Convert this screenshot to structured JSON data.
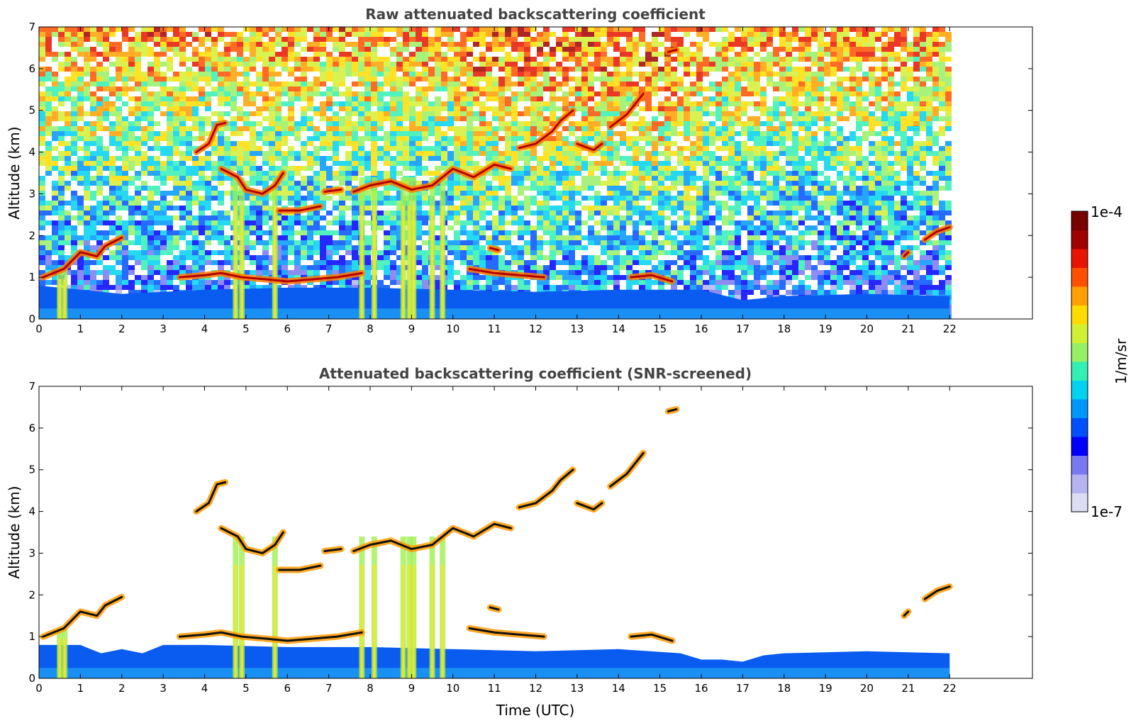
{
  "chart_data": [
    {
      "type": "heatmap",
      "title": "Raw attenuated backscattering coefficient",
      "xlabel": "",
      "ylabel": "Altitude (km)",
      "xlim": [
        0,
        24
      ],
      "ylim": [
        0,
        7
      ],
      "x_ticks": [
        0,
        1,
        2,
        3,
        4,
        5,
        6,
        7,
        8,
        9,
        10,
        11,
        12,
        13,
        14,
        15,
        16,
        17,
        18,
        19,
        20,
        21,
        22
      ],
      "y_ticks": [
        0,
        1,
        2,
        3,
        4,
        5,
        6,
        7
      ],
      "data_end_hour": 22,
      "features": {
        "noise_background": true,
        "boundary_layer": [
          [
            0,
            0.8
          ],
          [
            2,
            0.6
          ],
          [
            4,
            0.7
          ],
          [
            6,
            0.75
          ],
          [
            8,
            0.75
          ],
          [
            10,
            0.7
          ],
          [
            12,
            0.65
          ],
          [
            14,
            0.7
          ],
          [
            16,
            0.7
          ],
          [
            17,
            0.45
          ],
          [
            18,
            0.55
          ],
          [
            20,
            0.6
          ],
          [
            22,
            0.55
          ]
        ],
        "cloud_layers": [
          {
            "points": [
              [
                0.1,
                1.0
              ],
              [
                0.6,
                1.2
              ],
              [
                1.0,
                1.6
              ],
              [
                1.4,
                1.5
              ],
              [
                1.6,
                1.75
              ],
              [
                2.0,
                1.95
              ]
            ]
          },
          {
            "points": [
              [
                3.8,
                4.0
              ],
              [
                4.1,
                4.2
              ],
              [
                4.3,
                4.65
              ],
              [
                4.5,
                4.7
              ]
            ]
          },
          {
            "points": [
              [
                4.4,
                3.6
              ],
              [
                4.8,
                3.4
              ],
              [
                5.0,
                3.1
              ],
              [
                5.4,
                3.0
              ],
              [
                5.7,
                3.2
              ],
              [
                5.9,
                3.5
              ]
            ]
          },
          {
            "points": [
              [
                5.8,
                2.6
              ],
              [
                6.3,
                2.6
              ],
              [
                6.8,
                2.7
              ]
            ]
          },
          {
            "points": [
              [
                6.9,
                3.05
              ],
              [
                7.3,
                3.1
              ]
            ]
          },
          {
            "points": [
              [
                7.6,
                3.05
              ],
              [
                8.0,
                3.2
              ],
              [
                8.5,
                3.3
              ],
              [
                9.0,
                3.1
              ],
              [
                9.5,
                3.2
              ],
              [
                10.0,
                3.6
              ],
              [
                10.5,
                3.4
              ],
              [
                11.0,
                3.7
              ],
              [
                11.4,
                3.6
              ]
            ]
          },
          {
            "points": [
              [
                11.6,
                4.1
              ],
              [
                12.0,
                4.2
              ],
              [
                12.4,
                4.5
              ],
              [
                12.6,
                4.75
              ],
              [
                12.9,
                5.0
              ]
            ]
          },
          {
            "points": [
              [
                13.0,
                4.2
              ],
              [
                13.4,
                4.05
              ],
              [
                13.6,
                4.2
              ]
            ]
          },
          {
            "points": [
              [
                13.8,
                4.6
              ],
              [
                14.2,
                4.9
              ],
              [
                14.6,
                5.4
              ]
            ]
          },
          {
            "points": [
              [
                15.2,
                6.4
              ],
              [
                15.4,
                6.45
              ]
            ]
          },
          {
            "points": [
              [
                3.4,
                1.0
              ],
              [
                4.0,
                1.05
              ],
              [
                4.4,
                1.1
              ],
              [
                4.9,
                1.0
              ],
              [
                5.5,
                0.95
              ],
              [
                6.0,
                0.9
              ],
              [
                6.6,
                0.95
              ],
              [
                7.2,
                1.0
              ],
              [
                7.8,
                1.1
              ]
            ]
          },
          {
            "points": [
              [
                10.4,
                1.2
              ],
              [
                11.0,
                1.1
              ],
              [
                11.6,
                1.05
              ],
              [
                12.2,
                1.0
              ]
            ]
          },
          {
            "points": [
              [
                14.3,
                1.0
              ],
              [
                14.8,
                1.05
              ],
              [
                15.3,
                0.9
              ]
            ]
          },
          {
            "points": [
              [
                21.4,
                1.9
              ],
              [
                21.7,
                2.1
              ],
              [
                22.0,
                2.2
              ]
            ]
          },
          {
            "points": [
              [
                10.9,
                1.7
              ],
              [
                11.1,
                1.65
              ]
            ]
          },
          {
            "points": [
              [
                20.9,
                1.5
              ],
              [
                21.0,
                1.6
              ]
            ]
          }
        ],
        "precip_streaks": [
          0.5,
          0.62,
          4.75,
          4.9,
          5.7,
          7.8,
          8.1,
          8.8,
          8.95,
          9.05,
          9.5,
          9.75
        ]
      }
    },
    {
      "type": "heatmap",
      "title": "Attenuated backscattering coefficient (SNR-screened)",
      "xlabel": "Time (UTC)",
      "ylabel": "Altitude (km)",
      "xlim": [
        0,
        24
      ],
      "ylim": [
        0,
        7
      ],
      "x_ticks": [
        0,
        1,
        2,
        3,
        4,
        5,
        6,
        7,
        8,
        9,
        10,
        11,
        12,
        13,
        14,
        15,
        16,
        17,
        18,
        19,
        20,
        21,
        22
      ],
      "y_ticks": [
        0,
        1,
        2,
        3,
        4,
        5,
        6,
        7
      ],
      "data_end_hour": 22,
      "features": {
        "noise_background": false,
        "boundary_layer": [
          [
            0,
            0.8
          ],
          [
            1,
            0.8
          ],
          [
            1.5,
            0.6
          ],
          [
            2,
            0.7
          ],
          [
            2.5,
            0.6
          ],
          [
            3,
            0.8
          ],
          [
            4,
            0.8
          ],
          [
            6,
            0.75
          ],
          [
            8,
            0.75
          ],
          [
            10,
            0.7
          ],
          [
            12,
            0.65
          ],
          [
            14,
            0.7
          ],
          [
            15.5,
            0.6
          ],
          [
            16,
            0.45
          ],
          [
            16.5,
            0.45
          ],
          [
            17,
            0.4
          ],
          [
            17.5,
            0.55
          ],
          [
            18,
            0.6
          ],
          [
            20,
            0.65
          ],
          [
            22,
            0.6
          ]
        ],
        "cloud_layers": [
          {
            "points": [
              [
                0.1,
                1.0
              ],
              [
                0.6,
                1.2
              ],
              [
                1.0,
                1.6
              ],
              [
                1.4,
                1.5
              ],
              [
                1.6,
                1.75
              ],
              [
                2.0,
                1.95
              ]
            ]
          },
          {
            "points": [
              [
                3.8,
                4.0
              ],
              [
                4.1,
                4.2
              ],
              [
                4.3,
                4.65
              ],
              [
                4.5,
                4.7
              ]
            ]
          },
          {
            "points": [
              [
                4.4,
                3.6
              ],
              [
                4.8,
                3.4
              ],
              [
                5.0,
                3.1
              ],
              [
                5.4,
                3.0
              ],
              [
                5.7,
                3.2
              ],
              [
                5.9,
                3.5
              ]
            ]
          },
          {
            "points": [
              [
                5.8,
                2.6
              ],
              [
                6.3,
                2.6
              ],
              [
                6.8,
                2.7
              ]
            ]
          },
          {
            "points": [
              [
                6.9,
                3.05
              ],
              [
                7.3,
                3.1
              ]
            ]
          },
          {
            "points": [
              [
                7.6,
                3.05
              ],
              [
                8.0,
                3.2
              ],
              [
                8.5,
                3.3
              ],
              [
                9.0,
                3.1
              ],
              [
                9.5,
                3.2
              ],
              [
                10.0,
                3.6
              ],
              [
                10.5,
                3.4
              ],
              [
                11.0,
                3.7
              ],
              [
                11.4,
                3.6
              ]
            ]
          },
          {
            "points": [
              [
                11.6,
                4.1
              ],
              [
                12.0,
                4.2
              ],
              [
                12.4,
                4.5
              ],
              [
                12.6,
                4.75
              ],
              [
                12.9,
                5.0
              ]
            ]
          },
          {
            "points": [
              [
                13.0,
                4.2
              ],
              [
                13.4,
                4.05
              ],
              [
                13.6,
                4.2
              ]
            ]
          },
          {
            "points": [
              [
                13.8,
                4.6
              ],
              [
                14.2,
                4.9
              ],
              [
                14.6,
                5.4
              ]
            ]
          },
          {
            "points": [
              [
                15.2,
                6.4
              ],
              [
                15.4,
                6.45
              ]
            ]
          },
          {
            "points": [
              [
                3.4,
                1.0
              ],
              [
                4.0,
                1.05
              ],
              [
                4.4,
                1.1
              ],
              [
                4.9,
                1.0
              ],
              [
                5.5,
                0.95
              ],
              [
                6.0,
                0.9
              ],
              [
                6.6,
                0.95
              ],
              [
                7.2,
                1.0
              ],
              [
                7.8,
                1.1
              ]
            ]
          },
          {
            "points": [
              [
                10.4,
                1.2
              ],
              [
                11.0,
                1.1
              ],
              [
                11.6,
                1.05
              ],
              [
                12.2,
                1.0
              ]
            ]
          },
          {
            "points": [
              [
                14.3,
                1.0
              ],
              [
                14.8,
                1.05
              ],
              [
                15.3,
                0.9
              ]
            ]
          },
          {
            "points": [
              [
                21.4,
                1.9
              ],
              [
                21.7,
                2.1
              ],
              [
                22.0,
                2.2
              ]
            ]
          },
          {
            "points": [
              [
                10.9,
                1.7
              ],
              [
                11.1,
                1.65
              ]
            ]
          },
          {
            "points": [
              [
                20.9,
                1.5
              ],
              [
                21.0,
                1.6
              ]
            ]
          }
        ],
        "precip_streaks": [
          0.5,
          0.62,
          4.75,
          4.9,
          5.7,
          7.8,
          8.1,
          8.8,
          8.95,
          9.05,
          9.5,
          9.75
        ]
      }
    }
  ],
  "colorbar": {
    "label": "1/m/sr",
    "max_label": "1e-4",
    "min_label": "1e-7",
    "scale": "log",
    "range": [
      1e-07,
      0.0001
    ],
    "colors": [
      "#dcdcf5",
      "#b4b4f0",
      "#7878f0",
      "#0000ff",
      "#0050ff",
      "#0096ff",
      "#00d2f0",
      "#32f0b4",
      "#96f064",
      "#d2f032",
      "#ffdc00",
      "#ffa000",
      "#ff5000",
      "#e61400",
      "#a00000",
      "#780000"
    ]
  }
}
